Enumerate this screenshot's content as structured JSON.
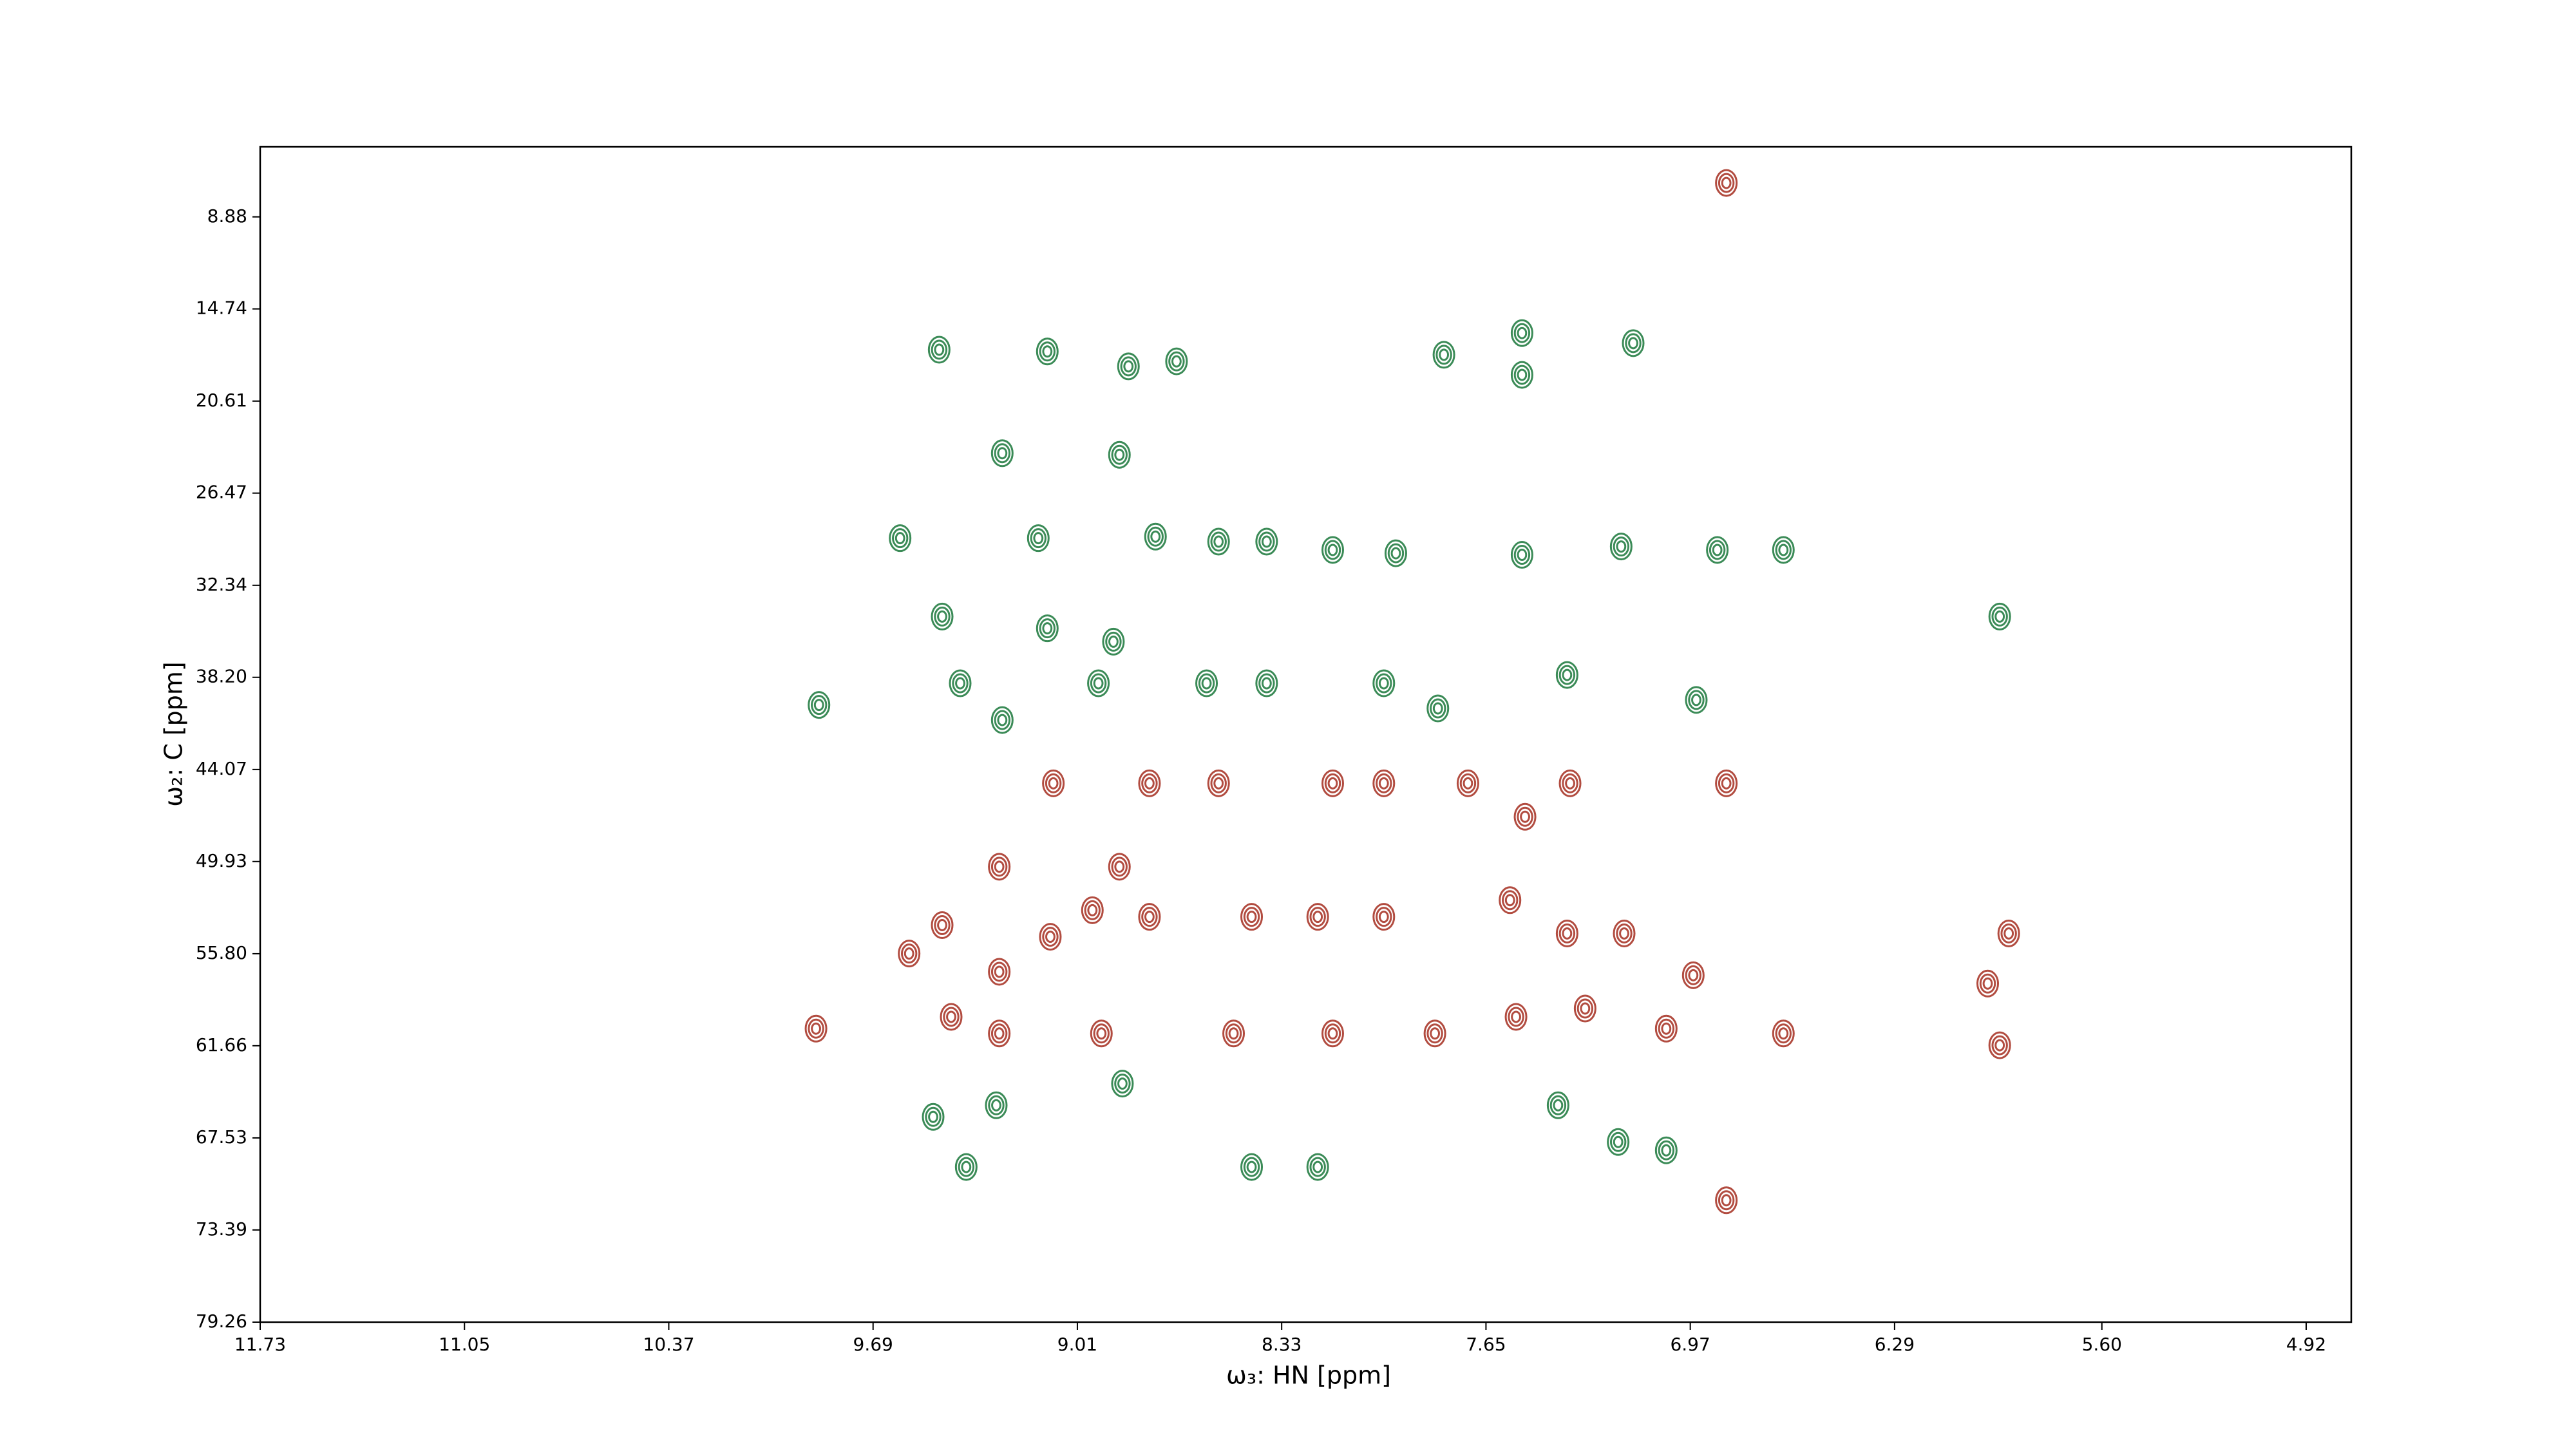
{
  "chart_data": {
    "type": "contour",
    "xlabel": "ω₃: HN [ppm]",
    "ylabel": "ω₂: C [ppm]",
    "xlim": [
      11.73,
      4.77
    ],
    "ylim": [
      79.26,
      4.42
    ],
    "xticks": [
      11.73,
      11.05,
      10.37,
      9.69,
      9.01,
      8.33,
      7.65,
      6.97,
      6.29,
      {
        "value": 5.6,
        "label": "5.60"
      },
      4.92
    ],
    "yticks": [
      8.88,
      14.74,
      20.61,
      26.47,
      32.34,
      {
        "value": 38.2,
        "label": "38.20"
      },
      44.07,
      49.93,
      {
        "value": 55.8,
        "label": "55.80"
      },
      61.66,
      67.53,
      73.39,
      79.26
    ],
    "series": [
      {
        "color": "#3b8b57",
        "x": [
          9.47,
          9.11,
          8.84,
          8.68,
          7.53,
          7.16,
          7.53,
          7.79,
          9.26,
          8.87,
          9.6,
          9.14,
          8.75,
          8.54,
          8.38,
          8.16,
          7.95,
          7.53,
          7.2,
          6.66,
          6.88,
          9.46,
          9.11,
          8.89,
          5.94,
          9.87,
          9.4,
          9.26,
          8.94,
          8.58,
          8.38,
          7.99,
          7.81,
          7.38,
          6.95,
          9.49,
          9.28,
          9.38,
          8.86,
          8.43,
          8.21,
          7.41,
          7.21,
          7.05
        ],
        "y": [
          17.34,
          17.45,
          18.4,
          18.08,
          16.28,
          16.92,
          18.94,
          17.66,
          23.93,
          24.03,
          29.34,
          29.34,
          29.24,
          29.56,
          29.56,
          30.09,
          30.3,
          30.4,
          29.87,
          30.09,
          30.09,
          34.33,
          35.08,
          35.93,
          34.33,
          39.96,
          38.58,
          40.92,
          38.58,
          38.58,
          38.58,
          38.58,
          40.18,
          38.05,
          39.64,
          66.19,
          65.45,
          69.38,
          64.07,
          69.38,
          69.38,
          65.45,
          67.79,
          68.32
        ]
      },
      {
        "color": "#b24c40",
        "x": [
          9.09,
          8.77,
          8.54,
          8.16,
          7.99,
          7.71,
          7.52,
          7.37,
          9.27,
          8.87,
          9.57,
          9.46,
          9.27,
          9.1,
          8.96,
          8.77,
          8.43,
          8.21,
          7.99,
          7.57,
          7.38,
          7.19,
          6.96,
          5.91,
          5.98,
          9.88,
          9.43,
          9.27,
          8.93,
          8.49,
          8.16,
          7.82,
          7.55,
          7.32,
          7.05,
          6.66,
          5.94,
          6.85,
          6.85,
          6.85
        ],
        "y": [
          44.95,
          44.95,
          44.95,
          44.95,
          44.95,
          44.95,
          47.08,
          44.95,
          50.26,
          50.26,
          55.79,
          53.98,
          56.95,
          54.72,
          53.03,
          53.45,
          53.45,
          53.45,
          53.45,
          52.39,
          54.51,
          54.51,
          57.17,
          54.51,
          57.7,
          60.57,
          59.82,
          60.88,
          60.88,
          60.88,
          60.88,
          60.88,
          59.82,
          59.29,
          60.57,
          60.88,
          61.63,
          44.95,
          71.5,
          6.72
        ]
      }
    ]
  }
}
